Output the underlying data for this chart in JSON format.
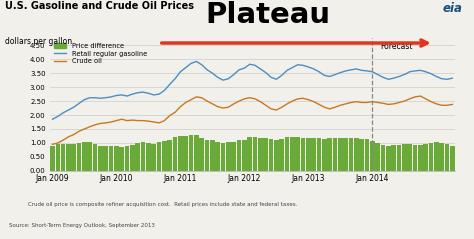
{
  "title": "U.S. Gasoline and Crude Oil Prices",
  "subtitle": "dollars per gallon",
  "plateau_text": "Plateau",
  "forecast_text": "Forecast",
  "footnote": "Crude oil price is composite refiner acquisition cost.  Retail prices include state and federal taxes.",
  "source": "Source: Short-Term Energy Outlook, September 2013",
  "bg_color": "#f2f0eb",
  "gasoline_color": "#4a8fc4",
  "crude_color": "#c87820",
  "bar_color": "#6aaa38",
  "arrow_color": "#e03520",
  "grid_color": "#cccccc",
  "dashed_line_x": 60,
  "months": [
    "Jan 2009",
    "Jan 2010",
    "Jan 2011",
    "Jan 2012",
    "Jan 2013",
    "Jan 2014"
  ],
  "month_positions": [
    0,
    12,
    24,
    36,
    48,
    60
  ],
  "ylim": [
    0.0,
    4.75
  ],
  "yticks": [
    0.0,
    0.5,
    1.0,
    1.5,
    2.0,
    2.5,
    3.0,
    3.5,
    4.0,
    4.5
  ],
  "gasoline_values": [
    1.85,
    1.95,
    2.08,
    2.18,
    2.28,
    2.42,
    2.55,
    2.62,
    2.62,
    2.6,
    2.62,
    2.65,
    2.7,
    2.72,
    2.68,
    2.75,
    2.8,
    2.82,
    2.78,
    2.72,
    2.75,
    2.88,
    3.1,
    3.3,
    3.55,
    3.7,
    3.85,
    3.92,
    3.8,
    3.62,
    3.5,
    3.35,
    3.25,
    3.3,
    3.45,
    3.62,
    3.68,
    3.82,
    3.78,
    3.65,
    3.52,
    3.35,
    3.28,
    3.42,
    3.6,
    3.7,
    3.8,
    3.78,
    3.72,
    3.65,
    3.55,
    3.42,
    3.38,
    3.45,
    3.52,
    3.58,
    3.62,
    3.65,
    3.6,
    3.58,
    3.55,
    3.45,
    3.35,
    3.28,
    3.32,
    3.38,
    3.45,
    3.55,
    3.58,
    3.6,
    3.55,
    3.48,
    3.38,
    3.3,
    3.28,
    3.32
  ],
  "crude_values": [
    0.95,
    1.0,
    1.1,
    1.22,
    1.3,
    1.42,
    1.5,
    1.58,
    1.65,
    1.7,
    1.72,
    1.75,
    1.8,
    1.85,
    1.8,
    1.82,
    1.8,
    1.8,
    1.78,
    1.75,
    1.72,
    1.8,
    1.98,
    2.1,
    2.3,
    2.45,
    2.55,
    2.65,
    2.62,
    2.5,
    2.4,
    2.3,
    2.25,
    2.28,
    2.4,
    2.5,
    2.58,
    2.62,
    2.58,
    2.48,
    2.35,
    2.22,
    2.18,
    2.28,
    2.4,
    2.5,
    2.58,
    2.6,
    2.55,
    2.48,
    2.38,
    2.28,
    2.22,
    2.28,
    2.35,
    2.4,
    2.45,
    2.48,
    2.45,
    2.45,
    2.48,
    2.45,
    2.42,
    2.38,
    2.4,
    2.45,
    2.5,
    2.58,
    2.65,
    2.68,
    2.58,
    2.48,
    2.4,
    2.35,
    2.35,
    2.38
  ],
  "bar_values": [
    0.9,
    0.95,
    0.98,
    0.96,
    0.98,
    1.0,
    1.05,
    1.04,
    0.97,
    0.9,
    0.9,
    0.9,
    0.9,
    0.87,
    0.88,
    0.93,
    1.0,
    1.02,
    1.0,
    0.97,
    1.03,
    1.08,
    1.12,
    1.2,
    1.25,
    1.25,
    1.3,
    1.27,
    1.18,
    1.12,
    1.1,
    1.05,
    1.0,
    1.02,
    1.05,
    1.12,
    1.1,
    1.2,
    1.2,
    1.17,
    1.17,
    1.13,
    1.1,
    1.14,
    1.2,
    1.2,
    1.22,
    1.18,
    1.17,
    1.17,
    1.17,
    1.14,
    1.16,
    1.17,
    1.17,
    1.18,
    1.17,
    1.17,
    1.15,
    1.13,
    1.07,
    1.0,
    0.93,
    0.9,
    0.92,
    0.93,
    0.95,
    0.97,
    0.93,
    0.92,
    0.95,
    1.0,
    1.02,
    1.0,
    0.97,
    0.9
  ]
}
